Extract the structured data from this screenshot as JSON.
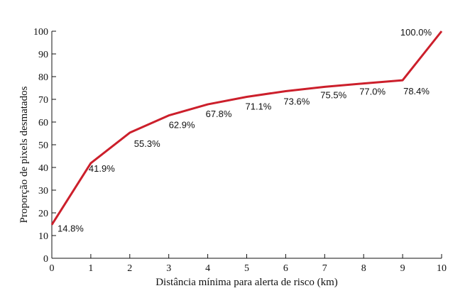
{
  "chart_data": {
    "type": "line",
    "title": "",
    "xlabel": "Distância mínima para alerta de risco (km)",
    "ylabel": "Proporção de pixels desmatados",
    "xlim": [
      0,
      10
    ],
    "ylim": [
      0,
      100
    ],
    "x_ticks": [
      0,
      1,
      2,
      3,
      4,
      5,
      6,
      7,
      8,
      9,
      10
    ],
    "y_ticks": [
      0,
      10,
      20,
      30,
      40,
      50,
      60,
      70,
      80,
      90,
      100
    ],
    "grid": false,
    "legend": "none",
    "series": [
      {
        "color": "#cc1f2b",
        "x": [
          0,
          1,
          2,
          3,
          4,
          5,
          6,
          7,
          8,
          9,
          10
        ],
        "y": [
          14.8,
          41.9,
          55.3,
          62.9,
          67.8,
          71.1,
          73.6,
          75.5,
          77.0,
          78.4,
          100.0
        ],
        "labels": [
          "14.8%",
          "41.9%",
          "55.3%",
          "62.9%",
          "67.8%",
          "71.1%",
          "73.6%",
          "75.5%",
          "77.0%",
          "78.4%",
          "100.0%"
        ]
      }
    ]
  }
}
